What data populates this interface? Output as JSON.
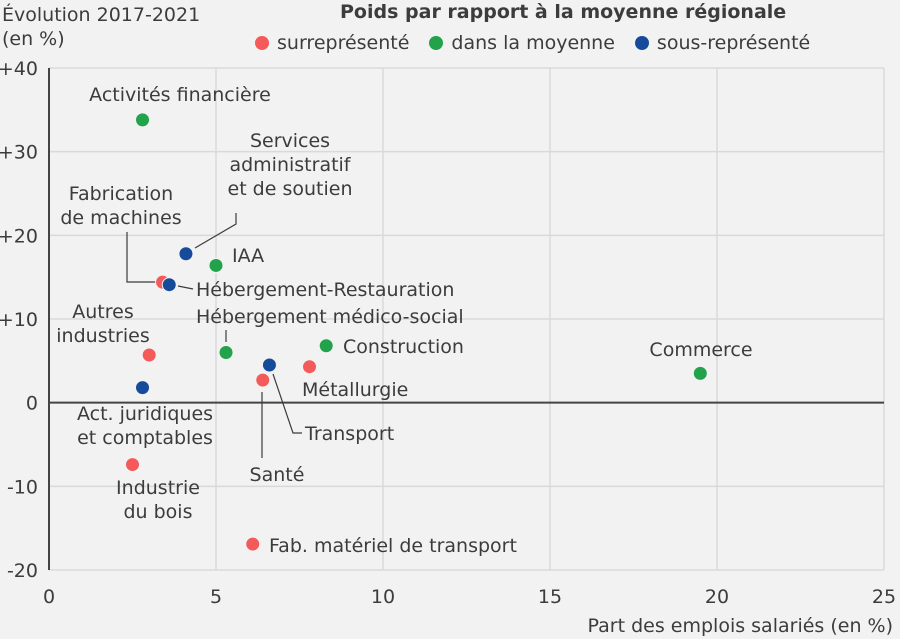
{
  "chart_data": {
    "type": "scatter",
    "ylabel": "Évolution 2017-2021",
    "ylabel_unit": "(en %)",
    "xlabel": "Part des emplois salariés (en %)",
    "legend_title": "Poids par rapport à la moyenne régionale",
    "legend_position": "top",
    "xlim": [
      0,
      25
    ],
    "ylim": [
      -20,
      40
    ],
    "grid": true,
    "x_ticks": [
      "0",
      "5",
      "10",
      "15",
      "20",
      "25"
    ],
    "y_ticks": [
      "+40",
      "+30",
      "+20",
      "+10",
      "0",
      "-10",
      "-20"
    ],
    "categories": [
      {
        "key": "sur",
        "label": "surreprésenté",
        "color": "#f45a5a"
      },
      {
        "key": "moy",
        "label": "dans la moyenne",
        "color": "#22a24a"
      },
      {
        "key": "sous",
        "label": "sous-représenté",
        "color": "#154b9a"
      }
    ],
    "points": [
      {
        "name": "Activités financière",
        "label_lines": [
          "Activités financière"
        ],
        "x": 2.8,
        "y": 33.8,
        "cat": "moy"
      },
      {
        "name": "Services administratif et de soutien",
        "label_lines": [
          "Services",
          "administratif",
          "et de soutien"
        ],
        "x": 4.1,
        "y": 17.8,
        "cat": "sous"
      },
      {
        "name": "IAA",
        "label_lines": [
          "IAA"
        ],
        "x": 5.0,
        "y": 16.4,
        "cat": "moy"
      },
      {
        "name": "Fabrication de machines",
        "label_lines": [
          "Fabrication",
          "de machines"
        ],
        "x": 3.4,
        "y": 14.4,
        "cat": "sur"
      },
      {
        "name": "Hébergement-Restauration",
        "label_lines": [
          "Hébergement-Restauration"
        ],
        "x": 3.6,
        "y": 14.1,
        "cat": "sous"
      },
      {
        "name": "Autres industries",
        "label_lines": [
          "Autres",
          "industries"
        ],
        "x": 3.0,
        "y": 5.7,
        "cat": "sur"
      },
      {
        "name": "Hébergement médico-social",
        "label_lines": [
          "Hébergement médico-social"
        ],
        "x": 5.3,
        "y": 6.0,
        "cat": "moy"
      },
      {
        "name": "Construction",
        "label_lines": [
          "Construction"
        ],
        "x": 8.3,
        "y": 6.8,
        "cat": "moy"
      },
      {
        "name": "Transport",
        "label_lines": [
          "Transport"
        ],
        "x": 6.6,
        "y": 4.5,
        "cat": "sous"
      },
      {
        "name": "Métallurgie",
        "label_lines": [
          "Métallurgie"
        ],
        "x": 7.8,
        "y": 4.3,
        "cat": "sur"
      },
      {
        "name": "Santé",
        "label_lines": [
          "Santé"
        ],
        "x": 6.4,
        "y": 2.7,
        "cat": "sur"
      },
      {
        "name": "Act. juridiques et comptables",
        "label_lines": [
          "Act. juridiques",
          "et comptables"
        ],
        "x": 2.8,
        "y": 1.8,
        "cat": "sous"
      },
      {
        "name": "Commerce",
        "label_lines": [
          "Commerce"
        ],
        "x": 19.5,
        "y": 3.5,
        "cat": "moy"
      },
      {
        "name": "Industrie du bois",
        "label_lines": [
          "Industrie",
          "du bois"
        ],
        "x": 2.5,
        "y": -7.4,
        "cat": "sur"
      },
      {
        "name": "Fab. matériel de transport",
        "label_lines": [
          "Fab. matériel de transport"
        ],
        "x": 6.1,
        "y": -16.9,
        "cat": "sur"
      }
    ]
  }
}
